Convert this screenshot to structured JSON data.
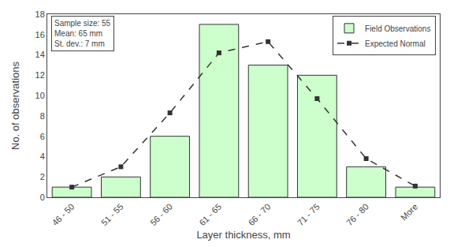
{
  "chart_data": {
    "type": "bar",
    "categories": [
      "46 - 50",
      "51 - 55",
      "56 - 60",
      "61 - 65",
      "66 - 70",
      "71 - 75",
      "76 - 80",
      "More"
    ],
    "series": [
      {
        "name": "Field Observations",
        "type": "bar",
        "color": "#ccffcc",
        "values": [
          1,
          2,
          6,
          17,
          13,
          12,
          3,
          1
        ]
      },
      {
        "name": "Expected Normal",
        "type": "line",
        "color": "#333333",
        "line_style": "dashed",
        "marker": "square",
        "values": [
          1,
          3,
          8.3,
          14.2,
          15.3,
          9.7,
          3.8,
          1.1
        ]
      }
    ],
    "xlabel": "Layer thickness, mm",
    "ylabel": "No. of observations",
    "ylim": [
      0,
      18
    ],
    "yticks": [
      0,
      2,
      4,
      6,
      8,
      10,
      12,
      14,
      16,
      18
    ],
    "annotation": "Sample size: 55\nMean: 65 mm\nSt. dev.: 7 mm",
    "legend": "upper right",
    "grid": false
  }
}
